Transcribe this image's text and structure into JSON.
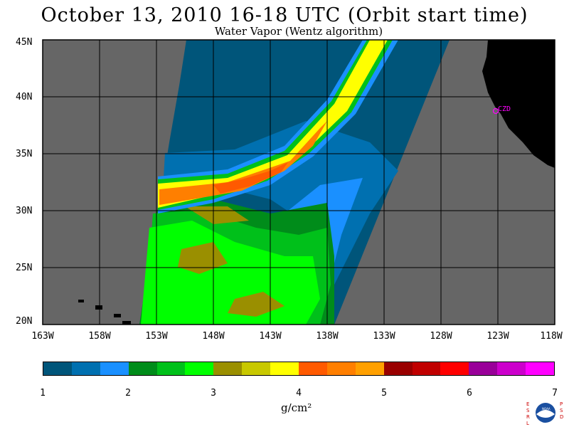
{
  "header": {
    "title": "October 13, 2010  16-18 UTC  (Orbit start time)",
    "subtitle": "Water Vapor (Wentz algorithm)"
  },
  "map": {
    "lat_labels": [
      "45N",
      "40N",
      "35N",
      "30N",
      "25N",
      "20N"
    ],
    "lon_labels": [
      "163W",
      "158W",
      "153W",
      "148W",
      "143W",
      "138W",
      "133W",
      "128W",
      "123W",
      "118W"
    ],
    "station_label": "CZD",
    "colors": {
      "no_data": "#666666",
      "land": "#000000",
      "station": "#ff00ff"
    }
  },
  "colorbar": {
    "colors": [
      "#00557a",
      "#0070b0",
      "#1a90ff",
      "#008c1a",
      "#00c01a",
      "#00ff00",
      "#9a8f00",
      "#c8c800",
      "#ffff00",
      "#ff5a00",
      "#ff7f00",
      "#ffa000",
      "#990000",
      "#c00000",
      "#ff0000",
      "#990099",
      "#cc00cc",
      "#ff00ff"
    ],
    "ticks": [
      "1",
      "2",
      "3",
      "4",
      "5",
      "6",
      "7"
    ],
    "units": "g/cm²"
  },
  "logo": {
    "text": "ESRL PSD NOAA"
  }
}
